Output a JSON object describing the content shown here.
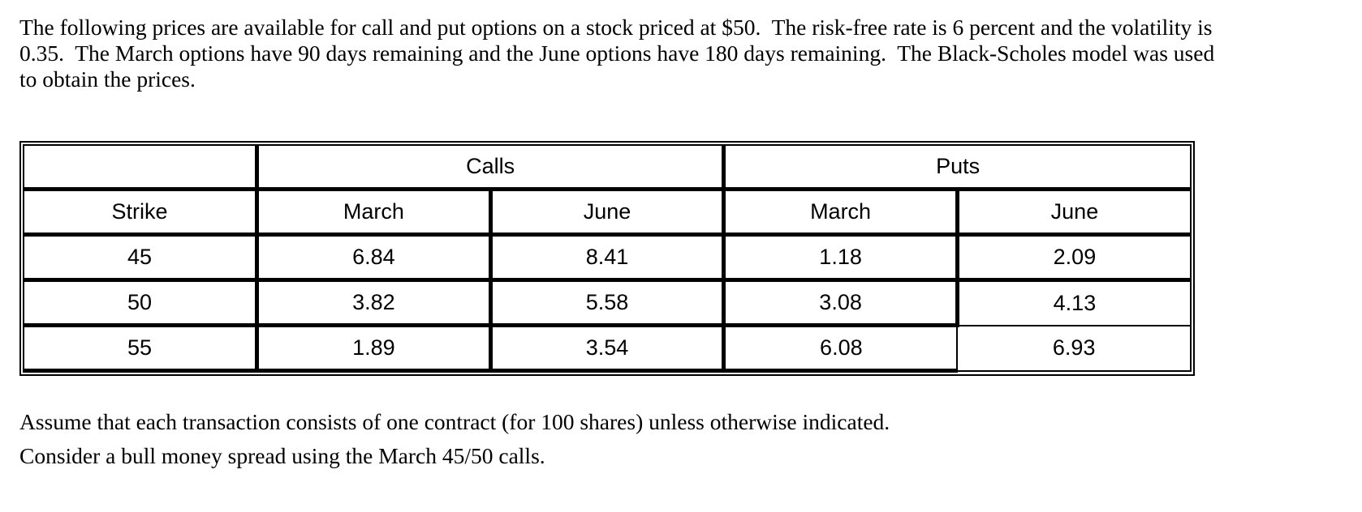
{
  "intro": {
    "lines": [
      "The following prices are available for call and put options on a stock priced at $50.  The risk-free rate is 6 percent and the volatility is",
      "0.35.  The March options have 90 days remaining and the June options have 180 days remaining.  The Black-Scholes model was used",
      "to obtain the prices."
    ]
  },
  "table": {
    "corner": "",
    "group_headers": [
      "Calls",
      "Puts"
    ],
    "col_headers": [
      "Strike",
      "March",
      "June",
      "March",
      "June"
    ],
    "rows": [
      [
        "45",
        "6.84",
        "8.41",
        "1.18",
        "2.09"
      ],
      [
        "50",
        "3.82",
        "5.58",
        "3.08",
        "4.13"
      ],
      [
        "55",
        "1.89",
        "3.54",
        "6.08",
        "6.93"
      ]
    ]
  },
  "notes": {
    "assume": "Assume that each transaction consists of one contract (for 100 shares) unless otherwise indicated.",
    "consider": "Consider a bull money spread using the March 45/50 calls."
  }
}
